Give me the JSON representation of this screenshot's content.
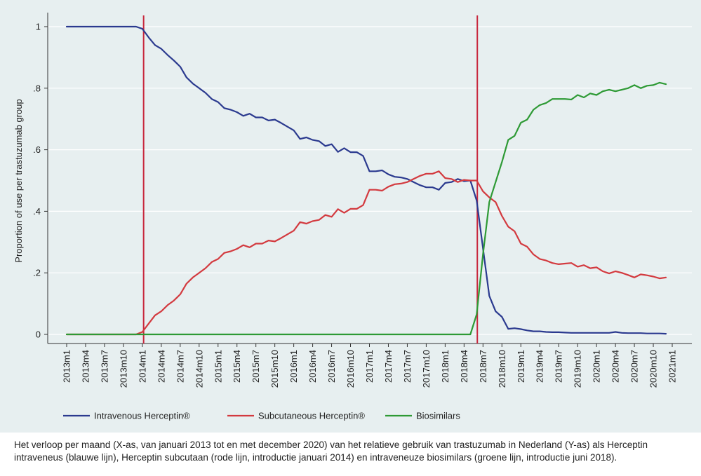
{
  "chart_data": {
    "type": "line",
    "title": "",
    "xlabel": "",
    "ylabel": "Proportion of use per trastuzumab group",
    "xlim": [
      0,
      97
    ],
    "ylim": [
      0,
      1
    ],
    "y_ticks": [
      {
        "value": 0,
        "label": "0"
      },
      {
        "value": 0.2,
        "label": ".2"
      },
      {
        "value": 0.4,
        "label": ".4"
      },
      {
        "value": 0.6,
        "label": ".6"
      },
      {
        "value": 0.8,
        "label": ".8"
      },
      {
        "value": 1,
        "label": "1"
      }
    ],
    "x_ticks": [
      {
        "value": 1,
        "label": "2013m1"
      },
      {
        "value": 4,
        "label": "2013m4"
      },
      {
        "value": 7,
        "label": "2013m7"
      },
      {
        "value": 10,
        "label": "2013m10"
      },
      {
        "value": 13,
        "label": "2014m1"
      },
      {
        "value": 16,
        "label": "2014m4"
      },
      {
        "value": 19,
        "label": "2014m7"
      },
      {
        "value": 22,
        "label": "2014m10"
      },
      {
        "value": 25,
        "label": "2015m1"
      },
      {
        "value": 28,
        "label": "2015m4"
      },
      {
        "value": 31,
        "label": "2015m7"
      },
      {
        "value": 34,
        "label": "2015m10"
      },
      {
        "value": 37,
        "label": "2016m1"
      },
      {
        "value": 40,
        "label": "2016m4"
      },
      {
        "value": 43,
        "label": "2016m7"
      },
      {
        "value": 46,
        "label": "2016m10"
      },
      {
        "value": 49,
        "label": "2017m1"
      },
      {
        "value": 52,
        "label": "2017m4"
      },
      {
        "value": 55,
        "label": "2017m7"
      },
      {
        "value": 58,
        "label": "2017m10"
      },
      {
        "value": 61,
        "label": "2018m1"
      },
      {
        "value": 64,
        "label": "2018m4"
      },
      {
        "value": 67,
        "label": "2018m7"
      },
      {
        "value": 70,
        "label": "2018m10"
      },
      {
        "value": 73,
        "label": "2019m1"
      },
      {
        "value": 76,
        "label": "2019m4"
      },
      {
        "value": 79,
        "label": "2019m7"
      },
      {
        "value": 82,
        "label": "2019m10"
      },
      {
        "value": 85,
        "label": "2020m1"
      },
      {
        "value": 88,
        "label": "2020m4"
      },
      {
        "value": 91,
        "label": "2020m7"
      },
      {
        "value": 94,
        "label": "2020m10"
      },
      {
        "value": 97,
        "label": "2021m1"
      }
    ],
    "grid": true,
    "legend_position": "bottom",
    "vlines": [
      {
        "x": 13.2,
        "color": "#c8293f"
      },
      {
        "x": 66.1,
        "color": "#c8293f"
      }
    ],
    "series": [
      {
        "name": "Intravenous Herceptin®",
        "color": "#2b3a8f",
        "x_start": 1,
        "values": [
          1,
          1,
          1,
          1,
          1,
          1,
          1,
          1,
          1,
          1,
          1,
          1,
          0.993,
          0.965,
          0.94,
          0.928,
          0.908,
          0.89,
          0.87,
          0.835,
          0.815,
          0.8,
          0.785,
          0.765,
          0.755,
          0.735,
          0.73,
          0.722,
          0.71,
          0.717,
          0.705,
          0.705,
          0.695,
          0.698,
          0.687,
          0.675,
          0.663,
          0.635,
          0.64,
          0.632,
          0.628,
          0.612,
          0.618,
          0.593,
          0.605,
          0.592,
          0.592,
          0.58,
          0.53,
          0.53,
          0.533,
          0.52,
          0.512,
          0.51,
          0.505,
          0.495,
          0.485,
          0.478,
          0.478,
          0.47,
          0.492,
          0.495,
          0.505,
          0.498,
          0.5,
          0.435,
          0.28,
          0.125,
          0.075,
          0.057,
          0.018,
          0.02,
          0.017,
          0.013,
          0.01,
          0.01,
          0.008,
          0.007,
          0.007,
          0.006,
          0.005,
          0.005,
          0.005,
          0.005,
          0.005,
          0.005,
          0.005,
          0.008,
          0.005,
          0.004,
          0.004,
          0.004,
          0.003,
          0.003,
          0.003,
          0.002
        ]
      },
      {
        "name": "Subcutaneous Herceptin®",
        "color": "#d33a3f",
        "x_start": 1,
        "values": [
          0,
          0,
          0,
          0,
          0,
          0,
          0,
          0,
          0,
          0,
          0,
          0,
          0.008,
          0.035,
          0.062,
          0.075,
          0.095,
          0.11,
          0.13,
          0.165,
          0.185,
          0.2,
          0.215,
          0.235,
          0.245,
          0.265,
          0.27,
          0.278,
          0.29,
          0.283,
          0.295,
          0.295,
          0.305,
          0.302,
          0.313,
          0.325,
          0.337,
          0.365,
          0.36,
          0.368,
          0.372,
          0.388,
          0.382,
          0.407,
          0.395,
          0.408,
          0.408,
          0.42,
          0.47,
          0.47,
          0.467,
          0.48,
          0.488,
          0.49,
          0.495,
          0.505,
          0.515,
          0.522,
          0.522,
          0.53,
          0.508,
          0.505,
          0.495,
          0.502,
          0.5,
          0.5,
          0.465,
          0.445,
          0.43,
          0.385,
          0.35,
          0.335,
          0.295,
          0.285,
          0.26,
          0.245,
          0.24,
          0.232,
          0.228,
          0.23,
          0.232,
          0.22,
          0.225,
          0.215,
          0.218,
          0.205,
          0.198,
          0.205,
          0.2,
          0.193,
          0.185,
          0.195,
          0.192,
          0.188,
          0.182,
          0.185
        ]
      },
      {
        "name": "Biosimilars",
        "color": "#2e9a35",
        "x_start": 1,
        "values": [
          0,
          0,
          0,
          0,
          0,
          0,
          0,
          0,
          0,
          0,
          0,
          0,
          0,
          0,
          0,
          0,
          0,
          0,
          0,
          0,
          0,
          0,
          0,
          0,
          0,
          0,
          0,
          0,
          0,
          0,
          0,
          0,
          0,
          0,
          0,
          0,
          0,
          0,
          0,
          0,
          0,
          0,
          0,
          0,
          0,
          0,
          0,
          0,
          0,
          0,
          0,
          0,
          0,
          0,
          0,
          0,
          0,
          0,
          0,
          0,
          0,
          0,
          0,
          0,
          0,
          0.065,
          0.26,
          0.43,
          0.495,
          0.56,
          0.632,
          0.645,
          0.688,
          0.698,
          0.73,
          0.745,
          0.752,
          0.765,
          0.765,
          0.765,
          0.763,
          0.778,
          0.77,
          0.783,
          0.778,
          0.79,
          0.795,
          0.79,
          0.795,
          0.8,
          0.81,
          0.8,
          0.808,
          0.81,
          0.818,
          0.813
        ]
      }
    ]
  },
  "caption": "Het verloop per maand (X-as, van januari 2013 tot en met december 2020) van het relatieve gebruik van trastuzumab in Nederland (Y-as) als Herceptin intraveneus (blauwe lijn), Herceptin subcutaan (rode lijn, introductie januari 2014) en intraveneuze biosimilars (groene lijn, introductie juni 2018)."
}
